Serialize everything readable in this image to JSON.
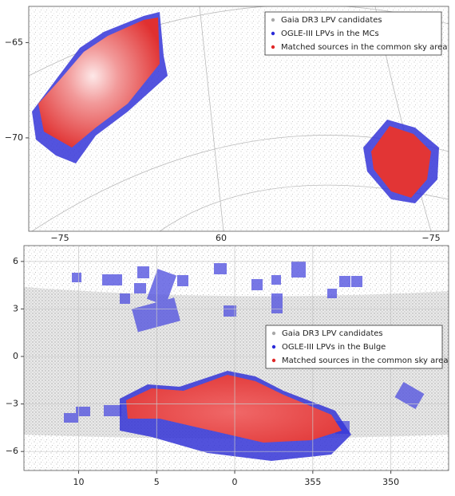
{
  "chart_data": [
    {
      "type": "scatter",
      "series": [
        {
          "name": "Gaia DR3 LPV candidates",
          "color": "#a8a8a8"
        },
        {
          "name": "OGLE-III LPVs in the MCs",
          "color": "#2a2ad8"
        },
        {
          "name": "Matched sources in the common sky area",
          "color": "#e02828"
        }
      ],
      "ylim": [
        -74.9,
        -63.1
      ],
      "yticks": [
        {
          "value": -65,
          "label": "−65"
        },
        {
          "value": -70,
          "label": "−70"
        }
      ],
      "x_tick_labels": [
        "−75",
        "60",
        "−75"
      ]
    },
    {
      "type": "scatter",
      "series": [
        {
          "name": "Gaia DR3 LPV candidates",
          "color": "#a8a8a8"
        },
        {
          "name": "OGLE-III LPVs in the Bulge",
          "color": "#2a2ad8"
        },
        {
          "name": "Matched sources in the common sky area",
          "color": "#e02828"
        }
      ],
      "xlim": [
        13.5,
        -13.7
      ],
      "ylim": [
        -7.2,
        7.0
      ],
      "xticks": [
        10,
        5,
        0,
        {
          "value": -5,
          "label": "355"
        },
        {
          "value": -10,
          "label": "350"
        }
      ],
      "yticks": [
        6,
        3,
        0,
        {
          "value": -3,
          "label": "−3"
        },
        {
          "value": -6,
          "label": "−6"
        }
      ],
      "grid": true
    }
  ]
}
